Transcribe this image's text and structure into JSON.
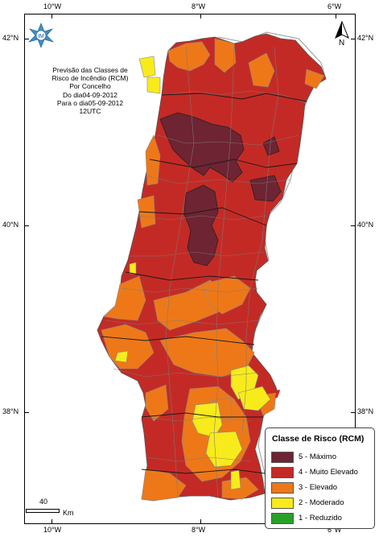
{
  "map": {
    "title_lines": [
      "Previsão das Classes de",
      "Risco de Incêndio (RCM)",
      "Por Concelho",
      "Do dia04-09-2012",
      "Para o dia05-09-2012",
      "12UTC"
    ],
    "logo_text": "IM",
    "north_label": "N",
    "scale": {
      "value": "40",
      "unit": "Km"
    },
    "axes": {
      "top_ticks": [
        "10°W",
        "8°W",
        "6°W"
      ],
      "bottom_ticks": [
        "10°W",
        "8°W",
        "6°W"
      ],
      "left_ticks": [
        "42°N",
        "40°N",
        "38°N"
      ],
      "right_ticks": [
        "42°N",
        "40°N",
        "38°N"
      ]
    }
  },
  "legend": {
    "title": "Classe de Risco (RCM)",
    "items": [
      {
        "label": "5 - Máximo",
        "color": "#6e2433"
      },
      {
        "label": "4 - Muito Elevado",
        "color": "#c42a25"
      },
      {
        "label": "3 - Elevado",
        "color": "#ee7818"
      },
      {
        "label": "2 - Moderado",
        "color": "#f8eb1b"
      },
      {
        "label": "1 - Reduzido",
        "color": "#2aa02a"
      }
    ]
  },
  "colors": {
    "spain_fill": "#ffffff",
    "border": "#777777",
    "ocean": "#ffffff"
  }
}
